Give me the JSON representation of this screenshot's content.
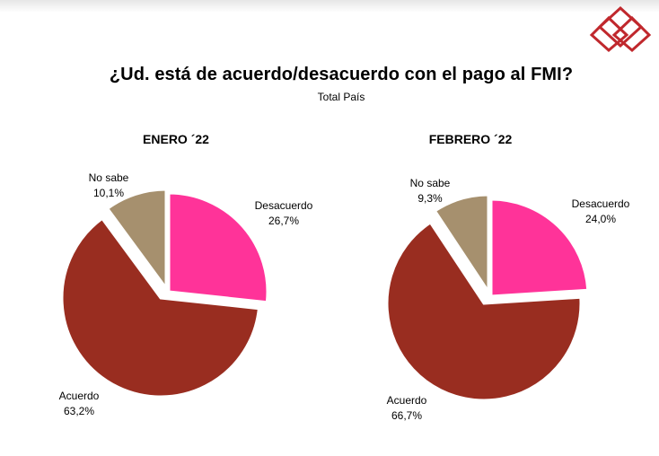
{
  "page": {
    "title": "¿Ud. está de acuerdo/desacuerdo con el pago al FMI?",
    "subtitle": "Total País"
  },
  "colors": {
    "acuerdo": "#992d20",
    "desacuerdo": "#ff3399",
    "no_sabe": "#a6906e",
    "logo": "#c0282d"
  },
  "chart_data": [
    {
      "type": "pie",
      "title": "ENERO ´22",
      "slices": [
        {
          "label": "Desacuerdo",
          "value": 26.7,
          "display": "26,7%"
        },
        {
          "label": "Acuerdo",
          "value": 63.2,
          "display": "63,2%"
        },
        {
          "label": "No sabe",
          "value": 10.1,
          "display": "10,1%"
        }
      ]
    },
    {
      "type": "pie",
      "title": "FEBRERO ´22",
      "slices": [
        {
          "label": "Desacuerdo",
          "value": 24.0,
          "display": "24,0%"
        },
        {
          "label": "Acuerdo",
          "value": 66.7,
          "display": "66,7%"
        },
        {
          "label": "No sabe",
          "value": 9.3,
          "display": "9,3%"
        }
      ]
    }
  ]
}
